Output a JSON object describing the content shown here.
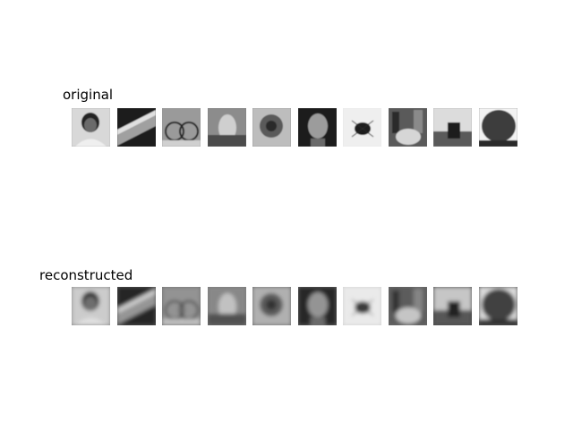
{
  "rows": {
    "original_label": "original",
    "reconstructed_label": "reconstructed"
  },
  "thumbnails": [
    {
      "subject": "person-portrait",
      "original_tone": "#9a9a9a",
      "reconstructed_tone": "#8a8a8a"
    },
    {
      "subject": "train",
      "original_tone": "#3a3a3a",
      "reconstructed_tone": "#5c5c5c"
    },
    {
      "subject": "bicycle",
      "original_tone": "#8f8f8f",
      "reconstructed_tone": "#6f6f6f"
    },
    {
      "subject": "hand-object",
      "original_tone": "#6e6e6e",
      "reconstructed_tone": "#777777"
    },
    {
      "subject": "flower",
      "original_tone": "#7d7d7d",
      "reconstructed_tone": "#6a6a6a"
    },
    {
      "subject": "elderly-face",
      "original_tone": "#4a4a4a",
      "reconstructed_tone": "#6c6c6c"
    },
    {
      "subject": "beetle",
      "original_tone": "#e4e4e4",
      "reconstructed_tone": "#d2d2d2"
    },
    {
      "subject": "crowd",
      "original_tone": "#707070",
      "reconstructed_tone": "#6a6a6a"
    },
    {
      "subject": "monitor",
      "original_tone": "#9c9c9c",
      "reconstructed_tone": "#4a4a4a"
    },
    {
      "subject": "tree",
      "original_tone": "#7a7a7a",
      "reconstructed_tone": "#5d5d5d"
    }
  ]
}
